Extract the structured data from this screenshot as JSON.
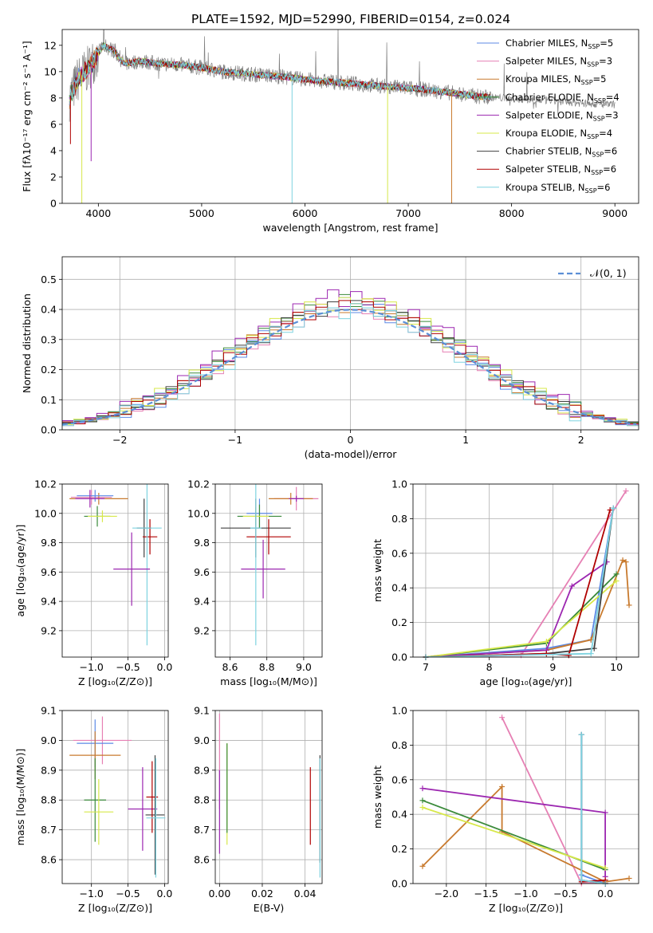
{
  "figure_title": "PLATE=1592, MJD=52990, FIBERID=0154, z=0.024",
  "colors": {
    "chabrier_miles": "#5c8ae6",
    "salpeter_miles": "#e680b4",
    "kroupa_miles": "#c87a2e",
    "chabrier_elodie": "#3a8a3a",
    "salpeter_elodie": "#9c27b0",
    "kroupa_elodie": "#d7e84a",
    "chabrier_stelib": "#404040",
    "salpeter_stelib": "#b00000",
    "kroupa_stelib": "#7ed3e0",
    "data": "#808080",
    "normal": "#5b8fd6"
  },
  "chart_data": [
    {
      "id": "spectrum",
      "type": "line",
      "title": "PLATE=1592, MJD=52990, FIBERID=0154, z=0.024",
      "xlabel": "wavelength [Angstrom, rest frame]",
      "ylabel": "Flux [fλ10⁻¹⁷ erg cm⁻² s⁻¹ A⁻¹]",
      "xlim": [
        3650,
        9230
      ],
      "ylim": [
        0,
        13.2
      ],
      "xticks": [
        4000,
        5000,
        6000,
        7000,
        8000,
        9000
      ],
      "yticks": [
        0,
        2,
        4,
        6,
        8,
        10,
        12
      ],
      "grid": false,
      "legend": "top-right",
      "legend_entries": [
        {
          "name": "Chabrier MILES, N",
          "sub": "SSP",
          "suffix": "=5",
          "color_key": "chabrier_miles"
        },
        {
          "name": "Salpeter MILES, N",
          "sub": "SSP",
          "suffix": "=3",
          "color_key": "salpeter_miles"
        },
        {
          "name": "Kroupa MILES, N",
          "sub": "SSP",
          "suffix": "=5",
          "color_key": "kroupa_miles"
        },
        {
          "name": "Chabrier ELODIE, N",
          "sub": "SSP",
          "suffix": "=4",
          "color_key": "chabrier_elodie"
        },
        {
          "name": "Salpeter ELODIE, N",
          "sub": "SSP",
          "suffix": "=3",
          "color_key": "salpeter_elodie"
        },
        {
          "name": "Kroupa ELODIE, N",
          "sub": "SSP",
          "suffix": "=4",
          "color_key": "kroupa_elodie"
        },
        {
          "name": "Chabrier STELIB, N",
          "sub": "SSP",
          "suffix": "=6",
          "color_key": "chabrier_stelib"
        },
        {
          "name": "Salpeter STELIB, N",
          "sub": "SSP",
          "suffix": "=6",
          "color_key": "salpeter_stelib"
        },
        {
          "name": "Kroupa STELIB, N",
          "sub": "SSP",
          "suffix": "=6",
          "color_key": "kroupa_stelib"
        }
      ],
      "continuum": {
        "x": [
          3720,
          3800,
          3900,
          3950,
          4050,
          4150,
          4250,
          4400,
          4600,
          4800,
          5000,
          5200,
          5500,
          5800,
          6000,
          6300,
          6600,
          6900,
          7100,
          7300,
          7500,
          7700,
          7900,
          8100,
          8400,
          8700,
          8900,
          9000
        ],
        "y": [
          8.0,
          9.4,
          10.2,
          10.8,
          12.0,
          11.6,
          10.6,
          10.8,
          10.6,
          10.5,
          10.3,
          10.0,
          9.8,
          9.6,
          9.4,
          9.2,
          9.0,
          8.8,
          8.7,
          8.5,
          8.3,
          8.1,
          8.0,
          7.9,
          7.8,
          7.6,
          7.5,
          7.5
        ]
      },
      "data_range": [
        3720,
        9000
      ],
      "model_range": [
        3720,
        7800
      ],
      "model_dips": [
        {
          "x": 3840,
          "y": 0.0,
          "color_key": "kroupa_elodie"
        },
        {
          "x": 5875,
          "y": 0.0,
          "color_key": "kroupa_stelib"
        },
        {
          "x": 6800,
          "y": 0.0,
          "color_key": "kroupa_elodie"
        },
        {
          "x": 7420,
          "y": 0.0,
          "color_key": "kroupa_miles"
        },
        {
          "x": 3730,
          "y": 4.5,
          "color_key": "salpeter_stelib"
        },
        {
          "x": 3930,
          "y": 3.2,
          "color_key": "salpeter_elodie"
        }
      ]
    },
    {
      "id": "residuals",
      "type": "area",
      "xlabel": "(data-model)/error",
      "ylabel": "Normed distribution",
      "xlim": [
        -2.5,
        2.5
      ],
      "ylim": [
        0,
        0.575
      ],
      "xticks": [
        -2,
        -1,
        0,
        1,
        2
      ],
      "yticks": [
        0.0,
        0.1,
        0.2,
        0.3,
        0.4,
        0.5
      ],
      "grid": true,
      "legend": "top-right",
      "legend_entries": [
        {
          "name": "𝒩(0, 1)",
          "color_key": "normal"
        }
      ],
      "bin_width": 0.1,
      "peaks": [
        {
          "color_key": "chabrier_miles",
          "amp": 0.41,
          "wiggle": [
            0.01,
            -0.02,
            0.02,
            -0.01,
            0.03,
            -0.02,
            0.01,
            0.02,
            -0.03,
            0.01
          ]
        },
        {
          "color_key": "salpeter_miles",
          "amp": 0.4,
          "wiggle": [
            -0.02,
            0.01,
            0.03,
            -0.02,
            0.0,
            0.02,
            -0.01,
            -0.02,
            0.02,
            0.01
          ]
        },
        {
          "color_key": "kroupa_miles",
          "amp": 0.41,
          "wiggle": [
            0.02,
            0.0,
            -0.01,
            0.02,
            -0.02,
            0.01,
            0.03,
            -0.01,
            0.0,
            -0.02
          ]
        },
        {
          "color_key": "chabrier_elodie",
          "amp": 0.42,
          "wiggle": [
            0.0,
            0.02,
            -0.02,
            0.01,
            0.03,
            -0.01,
            0.0,
            0.02,
            -0.02,
            0.01
          ]
        },
        {
          "color_key": "salpeter_elodie",
          "amp": 0.43,
          "wiggle": [
            0.03,
            -0.01,
            0.02,
            0.04,
            -0.02,
            0.03,
            -0.01,
            0.02,
            0.01,
            -0.01
          ]
        },
        {
          "color_key": "kroupa_elodie",
          "amp": 0.42,
          "wiggle": [
            -0.01,
            0.03,
            0.01,
            -0.02,
            0.02,
            0.0,
            0.02,
            -0.01,
            0.03,
            0.0
          ]
        },
        {
          "color_key": "chabrier_stelib",
          "amp": 0.41,
          "wiggle": [
            0.01,
            0.01,
            -0.02,
            0.02,
            -0.01,
            0.02,
            0.0,
            -0.02,
            0.01,
            0.02
          ]
        },
        {
          "color_key": "salpeter_stelib",
          "amp": 0.41,
          "wiggle": [
            0.02,
            -0.02,
            0.01,
            0.0,
            0.02,
            -0.01,
            0.02,
            0.01,
            -0.02,
            0.0
          ]
        },
        {
          "color_key": "kroupa_stelib",
          "amp": 0.4,
          "wiggle": [
            -0.02,
            0.02,
            0.0,
            0.01,
            -0.03,
            0.02,
            0.01,
            -0.01,
            0.02,
            -0.02
          ]
        }
      ],
      "normal_curve": {
        "mean": 0,
        "sigma": 1
      }
    },
    {
      "id": "age_vs_Z",
      "type": "scatter",
      "xlabel": "Z [log₁₀(Z/Z⊙)]",
      "ylabel": "age  [log₁₀(age/yr)]",
      "xlim": [
        -1.4,
        0.05
      ],
      "ylim": [
        9.02,
        10.2
      ],
      "xticks": [
        -1.0,
        -0.5,
        0.0
      ],
      "yticks": [
        9.2,
        9.4,
        9.6,
        9.8,
        10.0,
        10.2
      ],
      "grid": true,
      "crosses": [
        {
          "color_key": "salpeter_miles",
          "x": -1.0,
          "xerr": 0.28,
          "y": 10.11,
          "yerr": 0.05
        },
        {
          "color_key": "kroupa_miles",
          "x": -0.9,
          "xerr": 0.4,
          "y": 10.1,
          "yerr": 0.04
        },
        {
          "color_key": "chabrier_miles",
          "x": -0.95,
          "xerr": 0.25,
          "y": 10.12,
          "yerr": 0.04
        },
        {
          "color_key": "salpeter_elodie",
          "x": -1.02,
          "xerr": 0.2,
          "y": 10.1,
          "yerr": 0.06
        },
        {
          "color_key": "chabrier_elodie",
          "x": -0.92,
          "xerr": 0.18,
          "y": 9.98,
          "yerr": 0.07
        },
        {
          "color_key": "kroupa_elodie",
          "x": -0.85,
          "xerr": 0.2,
          "y": 9.98,
          "yerr": 0.04
        },
        {
          "color_key": "chabrier_stelib",
          "x": -0.28,
          "xerr": 0.1,
          "y": 9.9,
          "yerr": 0.2
        },
        {
          "color_key": "salpeter_stelib",
          "x": -0.2,
          "xerr": 0.1,
          "y": 9.84,
          "yerr": 0.12
        },
        {
          "color_key": "kroupa_stelib",
          "x": -0.24,
          "xerr": 0.2,
          "y": 9.9,
          "yerr": 0.8
        },
        {
          "color_key": "salpeter_elodie",
          "x": -0.45,
          "xerr": 0.25,
          "y": 9.62,
          "yerr": 0.25
        }
      ]
    },
    {
      "id": "age_vs_mass",
      "type": "scatter",
      "xlabel": "mass [log₁₀(M/M⊙)]",
      "ylabel": "",
      "xlim": [
        8.52,
        9.1
      ],
      "ylim": [
        9.02,
        10.2
      ],
      "xticks": [
        8.6,
        8.8,
        9.0
      ],
      "yticks": [
        9.2,
        9.4,
        9.6,
        9.8,
        10.0,
        10.2
      ],
      "grid": true,
      "crosses": [
        {
          "color_key": "salpeter_miles",
          "x": 8.96,
          "xerr": 0.12,
          "y": 10.1,
          "yerr": 0.08
        },
        {
          "color_key": "kroupa_miles",
          "x": 8.93,
          "xerr": 0.12,
          "y": 10.1,
          "yerr": 0.04
        },
        {
          "color_key": "chabrier_miles",
          "x": 8.76,
          "xerr": 0.07,
          "y": 10.0,
          "yerr": 0.1
        },
        {
          "color_key": "salpeter_elodie",
          "x": 8.78,
          "xerr": 0.12,
          "y": 9.62,
          "yerr": 0.2
        },
        {
          "color_key": "chabrier_elodie",
          "x": 8.76,
          "xerr": 0.12,
          "y": 9.98,
          "yerr": 0.08
        },
        {
          "color_key": "kroupa_elodie",
          "x": 8.74,
          "xerr": 0.07,
          "y": 9.98,
          "yerr": 0.06
        },
        {
          "color_key": "chabrier_stelib",
          "x": 8.74,
          "xerr": 0.19,
          "y": 9.9,
          "yerr": 0.2
        },
        {
          "color_key": "salpeter_stelib",
          "x": 8.81,
          "xerr": 0.12,
          "y": 9.84,
          "yerr": 0.12
        },
        {
          "color_key": "kroupa_stelib",
          "x": 8.74,
          "xerr": 0.03,
          "y": 9.9,
          "yerr": 0.8
        },
        {
          "color_key": "salpeter_elodie",
          "x": 8.96,
          "xerr": 0.04,
          "y": 10.1,
          "yerr": 0.02
        }
      ]
    },
    {
      "id": "weight_vs_age",
      "type": "line",
      "xlabel": "age  [log₁₀(age/yr)]",
      "ylabel": "mass weight",
      "xlim": [
        6.8,
        10.35
      ],
      "ylim": [
        0,
        1.0
      ],
      "xticks": [
        7,
        8,
        9,
        10
      ],
      "yticks": [
        0.0,
        0.2,
        0.4,
        0.6,
        0.8,
        1.0
      ],
      "grid": true,
      "series": [
        {
          "color_key": "salpeter_miles",
          "x": [
            7.0,
            8.5,
            10.15
          ],
          "y": [
            0.0,
            0.01,
            0.96
          ]
        },
        {
          "color_key": "chabrier_miles",
          "x": [
            7.0,
            8.9,
            9.6,
            9.95
          ],
          "y": [
            0.0,
            0.05,
            0.1,
            0.86
          ]
        },
        {
          "color_key": "kroupa_miles",
          "x": [
            7.0,
            8.9,
            9.6,
            10.1,
            10.15,
            10.2
          ],
          "y": [
            0.0,
            0.04,
            0.1,
            0.56,
            0.55,
            0.3
          ]
        },
        {
          "color_key": "chabrier_elodie",
          "x": [
            7.0,
            8.9,
            10.0
          ],
          "y": [
            0.0,
            0.08,
            0.48
          ]
        },
        {
          "color_key": "salpeter_elodie",
          "x": [
            7.0,
            8.9,
            9.3,
            9.85
          ],
          "y": [
            0.0,
            0.04,
            0.41,
            0.55
          ]
        },
        {
          "color_key": "kroupa_elodie",
          "x": [
            7.0,
            8.9,
            10.0
          ],
          "y": [
            0.0,
            0.09,
            0.44
          ]
        },
        {
          "color_key": "chabrier_stelib",
          "x": [
            7.0,
            8.9,
            9.65,
            9.95
          ],
          "y": [
            0.0,
            0.02,
            0.05,
            0.86
          ]
        },
        {
          "color_key": "salpeter_stelib",
          "x": [
            7.0,
            8.9,
            9.25,
            9.9
          ],
          "y": [
            0.0,
            0.02,
            0.01,
            0.85
          ]
        },
        {
          "color_key": "kroupa_stelib",
          "x": [
            7.0,
            9.6,
            9.95
          ],
          "y": [
            0.0,
            0.02,
            0.86
          ]
        }
      ]
    },
    {
      "id": "mass_vs_Z",
      "type": "scatter",
      "xlabel": "Z [log₁₀(Z/Z⊙)]",
      "ylabel": "mass [log₁₀(M/M⊙)]",
      "xlim": [
        -1.4,
        0.05
      ],
      "ylim": [
        8.52,
        9.1
      ],
      "xticks": [
        -1.0,
        -0.5,
        0.0
      ],
      "yticks": [
        8.6,
        8.7,
        8.8,
        8.9,
        9.0,
        9.1
      ],
      "grid": true,
      "crosses": [
        {
          "color_key": "salpeter_miles",
          "x": -0.85,
          "xerr": 0.4,
          "y": 9.0,
          "yerr": 0.08
        },
        {
          "color_key": "chabrier_miles",
          "x": -0.95,
          "xerr": 0.25,
          "y": 8.99,
          "yerr": 0.08
        },
        {
          "color_key": "kroupa_miles",
          "x": -0.95,
          "xerr": 0.35,
          "y": 8.95,
          "yerr": 0.08
        },
        {
          "color_key": "chabrier_elodie",
          "x": -0.95,
          "xerr": 0.15,
          "y": 8.8,
          "yerr": 0.14
        },
        {
          "color_key": "kroupa_elodie",
          "x": -0.9,
          "xerr": 0.2,
          "y": 8.76,
          "yerr": 0.11
        },
        {
          "color_key": "salpeter_elodie",
          "x": -0.3,
          "xerr": 0.2,
          "y": 8.77,
          "yerr": 0.14
        },
        {
          "color_key": "chabrier_stelib",
          "x": -0.13,
          "xerr": 0.13,
          "y": 8.75,
          "yerr": 0.2
        },
        {
          "color_key": "salpeter_stelib",
          "x": -0.17,
          "xerr": 0.08,
          "y": 8.81,
          "yerr": 0.12
        },
        {
          "color_key": "kroupa_stelib",
          "x": -0.12,
          "xerr": 0.13,
          "y": 8.74,
          "yerr": 0.2
        }
      ]
    },
    {
      "id": "mass_vs_ebv",
      "type": "scatter",
      "xlabel": "E(B-V)",
      "ylabel": "",
      "xlim": [
        -0.002,
        0.048
      ],
      "ylim": [
        8.52,
        9.1
      ],
      "xticks": [
        0.0,
        0.02,
        0.04
      ],
      "yticks": [
        8.6,
        8.7,
        8.8,
        8.9,
        9.0,
        9.1
      ],
      "grid": true,
      "crosses": [
        {
          "color_key": "salpeter_miles",
          "x": 0.0,
          "xerr": 0.0,
          "y": 8.93,
          "yerr": 0.16
        },
        {
          "color_key": "salpeter_elodie",
          "x": 0.0,
          "xerr": 0.0,
          "y": 8.76,
          "yerr": 0.14
        },
        {
          "color_key": "kroupa_elodie",
          "x": 0.0035,
          "xerr": 0.0,
          "y": 8.82,
          "yerr": 0.17
        },
        {
          "color_key": "chabrier_elodie",
          "x": 0.0035,
          "xerr": 0.0,
          "y": 8.84,
          "yerr": 0.15
        },
        {
          "color_key": "salpeter_stelib",
          "x": 0.0425,
          "xerr": 0.0,
          "y": 8.78,
          "yerr": 0.13
        },
        {
          "color_key": "chabrier_stelib",
          "x": 0.047,
          "xerr": 0.0,
          "y": 8.77,
          "yerr": 0.18
        },
        {
          "color_key": "kroupa_stelib",
          "x": 0.047,
          "xerr": 0.0,
          "y": 8.74,
          "yerr": 0.2
        }
      ]
    },
    {
      "id": "weight_vs_Z",
      "type": "line",
      "xlabel": "Z [log₁₀(Z/Z⊙)]",
      "ylabel": "mass weight",
      "xlim": [
        -2.42,
        0.42
      ],
      "ylim": [
        0,
        1.0
      ],
      "xticks": [
        -2.0,
        -1.5,
        -1.0,
        -0.5,
        0.0
      ],
      "yticks": [
        0.0,
        0.2,
        0.4,
        0.6,
        0.8,
        1.0
      ],
      "grid": true,
      "series": [
        {
          "color_key": "salpeter_miles",
          "x": [
            -1.3,
            -0.3,
            0.0
          ],
          "y": [
            0.96,
            0.0,
            0.01
          ]
        },
        {
          "color_key": "chabrier_miles",
          "x": [
            -0.3,
            -0.3,
            0.0
          ],
          "y": [
            0.86,
            0.05,
            0.0
          ]
        },
        {
          "color_key": "kroupa_miles",
          "x": [
            -2.3,
            -1.3,
            -1.3,
            0.0,
            0.3
          ],
          "y": [
            0.1,
            0.56,
            0.3,
            0.01,
            0.03
          ]
        },
        {
          "color_key": "chabrier_elodie",
          "x": [
            -2.3,
            0.0
          ],
          "y": [
            0.48,
            0.08
          ]
        },
        {
          "color_key": "salpeter_elodie",
          "x": [
            -2.3,
            0.0,
            0.0
          ],
          "y": [
            0.55,
            0.41,
            0.04
          ]
        },
        {
          "color_key": "kroupa_elodie",
          "x": [
            -2.3,
            0.0
          ],
          "y": [
            0.44,
            0.09
          ]
        },
        {
          "color_key": "chabrier_stelib",
          "x": [
            -0.3,
            -0.3,
            0.0
          ],
          "y": [
            0.86,
            0.02,
            0.0
          ]
        },
        {
          "color_key": "salpeter_stelib",
          "x": [
            -0.3,
            0.0,
            0.0
          ],
          "y": [
            0.01,
            0.02,
            0.0
          ]
        },
        {
          "color_key": "kroupa_stelib",
          "x": [
            -0.3,
            -0.3,
            0.0
          ],
          "y": [
            0.86,
            0.02,
            0.0
          ]
        }
      ]
    }
  ]
}
